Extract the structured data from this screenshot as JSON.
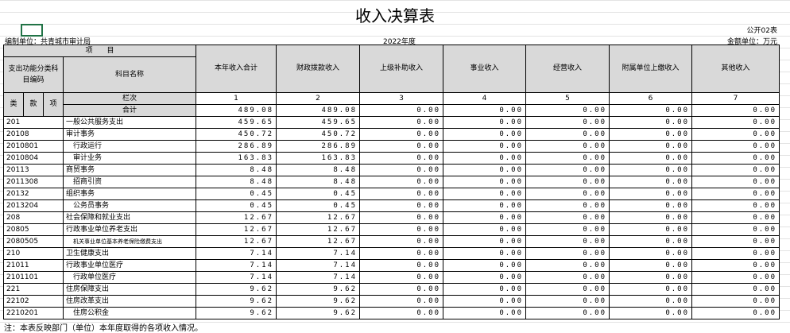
{
  "header": {
    "title": "收入决算表",
    "form_no": "公开02表",
    "unit": "编制单位：共青城市审计局",
    "year": "2022年度",
    "currency": "金额单位：万元"
  },
  "table": {
    "item_label": "项　　目",
    "code_label": "支出功能分类科目编码",
    "name_label": "科目名称",
    "columns": [
      "本年收入合计",
      "财政拨款收入",
      "上级补助收入",
      "事业收入",
      "经营收入",
      "附属单位上缴收入",
      "其他收入"
    ],
    "code_levels": [
      "类",
      "款",
      "项"
    ],
    "column_no_label": "栏次",
    "column_numbers": [
      1,
      2,
      3,
      4,
      5,
      6,
      7
    ],
    "total": {
      "name": "合计",
      "values": [
        "489.08",
        "489.08",
        "0.00",
        "0.00",
        "0.00",
        "0.00",
        "0.00"
      ]
    },
    "rows": [
      {
        "code": "201",
        "name": "一般公共服务支出",
        "values": [
          "459.65",
          "459.65",
          "0.00",
          "0.00",
          "0.00",
          "0.00",
          "0.00"
        ]
      },
      {
        "code": "20108",
        "name": "审计事务",
        "values": [
          "450.72",
          "450.72",
          "0.00",
          "0.00",
          "0.00",
          "0.00",
          "0.00"
        ]
      },
      {
        "code": "2010801",
        "name": "行政运行",
        "values": [
          "286.89",
          "286.89",
          "0.00",
          "0.00",
          "0.00",
          "0.00",
          "0.00"
        ]
      },
      {
        "code": "2010804",
        "name": "审计业务",
        "values": [
          "163.83",
          "163.83",
          "0.00",
          "0.00",
          "0.00",
          "0.00",
          "0.00"
        ]
      },
      {
        "code": "20113",
        "name": "商贸事务",
        "values": [
          "8.48",
          "8.48",
          "0.00",
          "0.00",
          "0.00",
          "0.00",
          "0.00"
        ]
      },
      {
        "code": "2011308",
        "name": "招商引资",
        "values": [
          "8.48",
          "8.48",
          "0.00",
          "0.00",
          "0.00",
          "0.00",
          "0.00"
        ]
      },
      {
        "code": "20132",
        "name": "组织事务",
        "values": [
          "0.45",
          "0.45",
          "0.00",
          "0.00",
          "0.00",
          "0.00",
          "0.00"
        ]
      },
      {
        "code": "2013204",
        "name": "公务员事务",
        "values": [
          "0.45",
          "0.45",
          "0.00",
          "0.00",
          "0.00",
          "0.00",
          "0.00"
        ]
      },
      {
        "code": "208",
        "name": "社会保障和就业支出",
        "values": [
          "12.67",
          "12.67",
          "0.00",
          "0.00",
          "0.00",
          "0.00",
          "0.00"
        ]
      },
      {
        "code": "20805",
        "name": "行政事业单位养老支出",
        "values": [
          "12.67",
          "12.67",
          "0.00",
          "0.00",
          "0.00",
          "0.00",
          "0.00"
        ]
      },
      {
        "code": "2080505",
        "name": "机关事业单位基本养老保险缴费支出",
        "values": [
          "12.67",
          "12.67",
          "0.00",
          "0.00",
          "0.00",
          "0.00",
          "0.00"
        ]
      },
      {
        "code": "210",
        "name": "卫生健康支出",
        "values": [
          "7.14",
          "7.14",
          "0.00",
          "0.00",
          "0.00",
          "0.00",
          "0.00"
        ]
      },
      {
        "code": "21011",
        "name": "行政事业单位医疗",
        "values": [
          "7.14",
          "7.14",
          "0.00",
          "0.00",
          "0.00",
          "0.00",
          "0.00"
        ]
      },
      {
        "code": "2101101",
        "name": "行政单位医疗",
        "values": [
          "7.14",
          "7.14",
          "0.00",
          "0.00",
          "0.00",
          "0.00",
          "0.00"
        ]
      },
      {
        "code": "221",
        "name": "住房保障支出",
        "values": [
          "9.62",
          "9.62",
          "0.00",
          "0.00",
          "0.00",
          "0.00",
          "0.00"
        ]
      },
      {
        "code": "22102",
        "name": "住房改革支出",
        "values": [
          "9.62",
          "9.62",
          "0.00",
          "0.00",
          "0.00",
          "0.00",
          "0.00"
        ]
      },
      {
        "code": "2210201",
        "name": "住房公积金",
        "values": [
          "9.62",
          "9.62",
          "0.00",
          "0.00",
          "0.00",
          "0.00",
          "0.00"
        ]
      }
    ]
  },
  "footer": {
    "note": "注：本表反映部门（单位）本年度取得的各项收入情况。"
  }
}
